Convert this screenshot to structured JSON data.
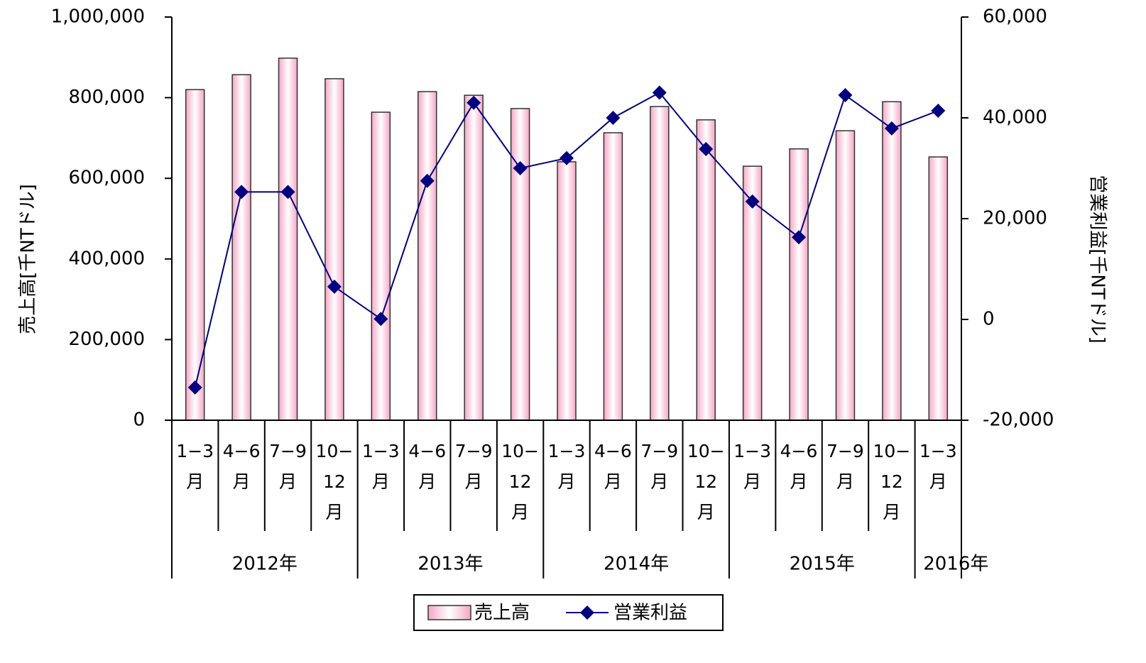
{
  "chart_data": {
    "type": "bar_line",
    "categories": [
      "1−3\n月",
      "4−6\n月",
      "7−9\n月",
      "10−\n12\n月",
      "1−3\n月",
      "4−6\n月",
      "7−9\n月",
      "10−\n12\n月",
      "1−3\n月",
      "4−6\n月",
      "7−9\n月",
      "10−\n12\n月",
      "1−3\n月",
      "4−6\n月",
      "7−9\n月",
      "10−\n12\n月",
      "1−3\n月"
    ],
    "years": [
      "2012年",
      null,
      null,
      null,
      "2013年",
      null,
      null,
      null,
      "2014年",
      null,
      null,
      null,
      "2015年",
      null,
      null,
      null,
      "2016年"
    ],
    "ylabel": "売上高[千NTドル]",
    "y2label": "営業利益[千NTドル]",
    "ylim": [
      0,
      1000000
    ],
    "yticks": [
      0,
      {
        "value": 200000,
        "label": "200,000"
      },
      {
        "value": 400000,
        "label": "400,000"
      },
      {
        "value": 600000,
        "label": "600,000"
      },
      {
        "value": 800000,
        "label": "800,000"
      },
      {
        "value": 1000000,
        "label": "1,000,000"
      }
    ],
    "y2lim": [
      -20000,
      60000
    ],
    "y2ticks": [
      {
        "value": -20000,
        "label": "-20,000"
      },
      0,
      {
        "value": 20000,
        "label": "20,000"
      },
      {
        "value": 40000,
        "label": "40,000"
      },
      {
        "value": 60000,
        "label": "60,000"
      }
    ],
    "series": [
      {
        "name": "売上高",
        "type": "bar",
        "color": "#f4a6c6",
        "values": [
          820000,
          857000,
          898000,
          847000,
          764000,
          815000,
          806000,
          773000,
          641000,
          713000,
          778000,
          745000,
          630000,
          673000,
          718000,
          790000,
          653000
        ]
      },
      {
        "name": "営業利益",
        "type": "line",
        "axis": "y2",
        "color": "#000080",
        "values": [
          -13500,
          25300,
          25300,
          6500,
          100,
          27500,
          43000,
          30000,
          32000,
          40000,
          45000,
          33800,
          23400,
          16300,
          44500,
          37900,
          41400
        ]
      }
    ]
  }
}
